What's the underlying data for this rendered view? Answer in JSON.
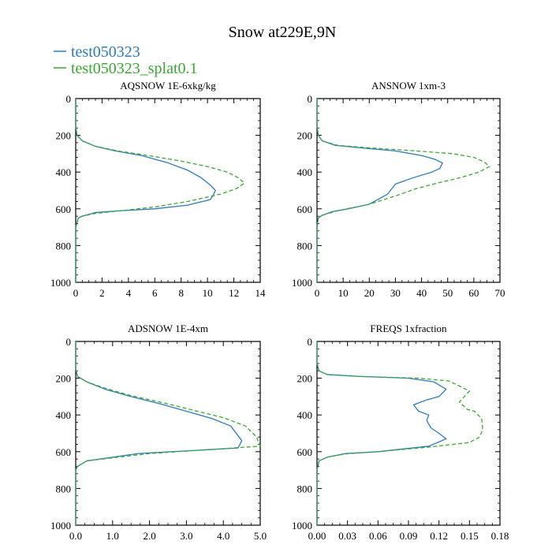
{
  "title": "Snow at229E,9N",
  "legend": [
    {
      "label": "test050323",
      "color": "#2b7bba",
      "dash": "solid"
    },
    {
      "label": "test050323_splat0.1",
      "color": "#3aa832",
      "dash": "dashed"
    }
  ],
  "chart_data": [
    {
      "type": "line",
      "title": "AQSNOW  1E-6xkg/kg",
      "xlim": [
        0,
        14
      ],
      "xticks": [
        "0",
        "2",
        "4",
        "6",
        "8",
        "10",
        "12",
        "14"
      ],
      "xtick_values": [
        0,
        2,
        4,
        6,
        8,
        10,
        12,
        14
      ],
      "ylim": [
        0,
        1000
      ],
      "yticks": [
        "0",
        "200",
        "400",
        "600",
        "800",
        "1000"
      ],
      "ytick_values": [
        0,
        200,
        400,
        600,
        800,
        1000
      ],
      "y_inverted": true,
      "series": [
        {
          "name": "test050323",
          "x": [
            0,
            0,
            0.1,
            0.5,
            1.5,
            3,
            5,
            7,
            8.5,
            9.5,
            10.2,
            10.6,
            10.4,
            10.2,
            8.5,
            6,
            3.5,
            1.5,
            0.5,
            0.2,
            0,
            0,
            0
          ],
          "y": [
            0,
            150,
            200,
            230,
            260,
            285,
            310,
            350,
            390,
            430,
            470,
            500,
            530,
            550,
            580,
            600,
            610,
            620,
            640,
            650,
            700,
            800,
            1000
          ]
        },
        {
          "name": "test050323_splat0.1",
          "x": [
            0,
            0,
            0.1,
            0.5,
            1.5,
            3.2,
            5.5,
            8,
            10,
            11.5,
            12.3,
            12.8,
            12.2,
            11,
            8.5,
            6,
            3.5,
            1.5,
            0.5,
            0.2,
            0,
            0,
            0
          ],
          "y": [
            0,
            150,
            200,
            230,
            260,
            285,
            310,
            340,
            370,
            400,
            430,
            460,
            490,
            520,
            560,
            590,
            610,
            625,
            640,
            650,
            700,
            800,
            1000
          ]
        }
      ]
    },
    {
      "type": "line",
      "title": "ANSNOW  1xm-3",
      "xlim": [
        0,
        70
      ],
      "xticks": [
        "0",
        "10",
        "20",
        "30",
        "40",
        "50",
        "60",
        "70"
      ],
      "xtick_values": [
        0,
        10,
        20,
        30,
        40,
        50,
        60,
        70
      ],
      "ylim": [
        0,
        1000
      ],
      "yticks": [
        "0",
        "200",
        "400",
        "600",
        "800",
        "1000"
      ],
      "ytick_values": [
        0,
        200,
        400,
        600,
        800,
        1000
      ],
      "y_inverted": true,
      "series": [
        {
          "name": "test050323",
          "x": [
            0,
            0,
            0.5,
            2,
            7,
            18,
            30,
            40,
            45,
            48,
            47,
            44,
            37,
            30,
            27,
            20,
            12,
            6,
            2,
            0.5,
            0,
            0,
            0
          ],
          "y": [
            0,
            150,
            200,
            230,
            255,
            270,
            285,
            310,
            330,
            350,
            380,
            400,
            430,
            465,
            520,
            575,
            600,
            615,
            635,
            650,
            700,
            800,
            1000
          ]
        },
        {
          "name": "test050323_splat0.1",
          "x": [
            0,
            0,
            0.5,
            2,
            8,
            22,
            38,
            52,
            60,
            64,
            66,
            62,
            55,
            46,
            38,
            30,
            20,
            8,
            2,
            0.5,
            0,
            0,
            0
          ],
          "y": [
            0,
            150,
            200,
            230,
            255,
            270,
            285,
            300,
            320,
            345,
            370,
            400,
            430,
            460,
            490,
            530,
            575,
            610,
            635,
            650,
            700,
            800,
            1000
          ]
        }
      ]
    },
    {
      "type": "line",
      "title": "ADSNOW  1E-4xm",
      "xlim": [
        0,
        5
      ],
      "xticks": [
        "0.0",
        "1.0",
        "2.0",
        "3.0",
        "4.0",
        "5.0"
      ],
      "xtick_values": [
        0,
        1,
        2,
        3,
        4,
        5
      ],
      "ylim": [
        0,
        1000
      ],
      "yticks": [
        "0",
        "200",
        "400",
        "600",
        "800",
        "1000"
      ],
      "ytick_values": [
        0,
        200,
        400,
        600,
        800,
        1000
      ],
      "y_inverted": true,
      "series": [
        {
          "name": "test050323",
          "x": [
            0,
            0,
            0.05,
            0.3,
            0.8,
            1.5,
            2.3,
            3.0,
            3.7,
            4.2,
            4.5,
            4.4,
            1.7,
            0.3,
            0.05,
            0,
            0,
            0
          ],
          "y": [
            0,
            150,
            190,
            220,
            260,
            300,
            340,
            380,
            420,
            460,
            540,
            580,
            610,
            650,
            680,
            700,
            800,
            1000
          ]
        },
        {
          "name": "test050323_splat0.1",
          "x": [
            0,
            0,
            0.05,
            0.3,
            0.8,
            1.5,
            2.4,
            3.2,
            4.0,
            4.6,
            4.9,
            5.0,
            2.0,
            0.3,
            0.05,
            0,
            0,
            0
          ],
          "y": [
            0,
            150,
            190,
            220,
            255,
            295,
            335,
            375,
            415,
            460,
            520,
            570,
            610,
            650,
            680,
            700,
            800,
            1000
          ]
        }
      ]
    },
    {
      "type": "line",
      "title": "FREQS  1xfraction",
      "xlim": [
        0,
        0.18
      ],
      "xticks": [
        "0.00",
        "0.03",
        "0.06",
        "0.09",
        "0.12",
        "0.15",
        "0.18"
      ],
      "xtick_values": [
        0,
        0.03,
        0.06,
        0.09,
        0.12,
        0.15,
        0.18
      ],
      "ylim": [
        0,
        1000
      ],
      "yticks": [
        "0",
        "200",
        "400",
        "600",
        "800",
        "1000"
      ],
      "ytick_values": [
        0,
        200,
        400,
        600,
        800,
        1000
      ],
      "y_inverted": true,
      "series": [
        {
          "name": "test050323",
          "x": [
            0,
            0,
            0.002,
            0.01,
            0.04,
            0.09,
            0.115,
            0.127,
            0.12,
            0.107,
            0.095,
            0.1,
            0.11,
            0.108,
            0.112,
            0.12,
            0.127,
            0.11,
            0.06,
            0.028,
            0.01,
            0.002,
            0,
            0,
            0
          ],
          "y": [
            0,
            120,
            160,
            180,
            190,
            200,
            220,
            260,
            300,
            320,
            345,
            380,
            400,
            430,
            470,
            500,
            530,
            570,
            600,
            610,
            630,
            650,
            700,
            800,
            1000
          ]
        },
        {
          "name": "test050323_splat0.1",
          "x": [
            0,
            0,
            0.002,
            0.01,
            0.04,
            0.1,
            0.13,
            0.15,
            0.145,
            0.14,
            0.148,
            0.155,
            0.162,
            0.163,
            0.16,
            0.15,
            0.11,
            0.06,
            0.028,
            0.01,
            0.002,
            0,
            0,
            0
          ],
          "y": [
            0,
            120,
            160,
            180,
            190,
            200,
            215,
            270,
            300,
            330,
            370,
            380,
            420,
            480,
            520,
            550,
            575,
            600,
            612,
            630,
            650,
            700,
            800,
            1000
          ]
        }
      ]
    }
  ]
}
